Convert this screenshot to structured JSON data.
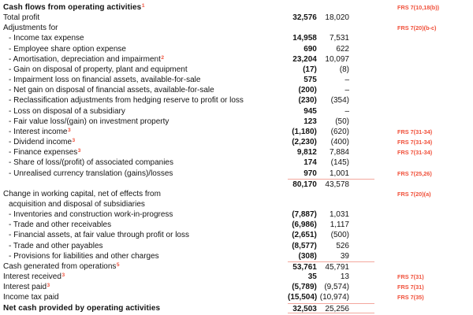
{
  "document": {
    "type": "cash-flow-statement",
    "colors": {
      "accent": "#f0503a",
      "rule": "#f3a79e",
      "text": "#141414"
    },
    "columns": {
      "col1_role": "current-year-amounts",
      "col2_role": "prior-year-amounts",
      "ref_role": "frs-reference"
    },
    "rows": [
      {
        "label": "Cash flows from operating activities",
        "sup": "1",
        "heading": true,
        "frs": "FRS 7(10,18(b))"
      },
      {
        "label": "Total profit",
        "v1": "32,576",
        "v2": "18,020"
      },
      {
        "label": "Adjustments for",
        "frs": "FRS 7(20)(b-c)"
      },
      {
        "label": "- Income tax expense",
        "indent": 1,
        "v1": "14,958",
        "v2": "7,531"
      },
      {
        "label": "- Employee share option expense",
        "indent": 1,
        "v1": "690",
        "v2": "622"
      },
      {
        "label": "- Amortisation, depreciation and impairment",
        "sup": "2",
        "indent": 1,
        "v1": "23,204",
        "v2": "10,097"
      },
      {
        "label": "- Gain on disposal of property, plant and equipment",
        "indent": 1,
        "v1": "(17)",
        "v2": "(8)"
      },
      {
        "label": "- Impairment loss on financial assets, available-for-sale",
        "indent": 1,
        "v1": "575",
        "v2": "–"
      },
      {
        "label": "- Net gain on disposal of financial assets, available-for-sale",
        "indent": 1,
        "v1": "(200)",
        "v2": "–"
      },
      {
        "label": "- Reclassification adjustments from hedging reserve to profit or loss",
        "indent": 1,
        "v1": "(230)",
        "v2": "(354)"
      },
      {
        "label": "- Loss on disposal of a subsidiary",
        "indent": 1,
        "v1": "945",
        "v2": "–"
      },
      {
        "label": "- Fair value loss/(gain) on investment property",
        "indent": 1,
        "v1": "123",
        "v2": "(50)"
      },
      {
        "label": "- Interest income",
        "sup": "3",
        "indent": 1,
        "v1": "(1,180)",
        "v2": "(620)",
        "frs": "FRS 7(31-34)"
      },
      {
        "label": "- Dividend income",
        "sup": "3",
        "indent": 1,
        "v1": "(2,230)",
        "v2": "(400)",
        "frs": "FRS 7(31-34)"
      },
      {
        "label": "- Finance expenses",
        "sup": "3",
        "indent": 1,
        "v1": "9,812",
        "v2": "7,884",
        "frs": "FRS 7(31-34)"
      },
      {
        "label": "- Share of loss/(profit) of associated companies",
        "indent": 1,
        "v1": "174",
        "v2": "(145)"
      },
      {
        "label": "- Unrealised currency translation (gains)/losses",
        "indent": 1,
        "v1": "970",
        "v2": "1,001",
        "frs": "FRS 7(25,26)"
      },
      {
        "label": "",
        "v1": "80,170",
        "v2": "43,578",
        "rule_above": true
      },
      {
        "label": "Change in working capital, net of effects from",
        "frs": "FRS 7(20)(a)"
      },
      {
        "label": "acquisition and disposal of subsidiaries",
        "indent": 1
      },
      {
        "label": "- Inventories and construction work-in-progress",
        "indent": 1,
        "v1": "(7,887)",
        "v2": "1,031"
      },
      {
        "label": "- Trade and other receivables",
        "indent": 1,
        "v1": "(6,986)",
        "v2": "1,117"
      },
      {
        "label": "- Financial assets, at fair value through profit or loss",
        "indent": 1,
        "v1": "(2,651)",
        "v2": "(500)"
      },
      {
        "label": "- Trade and other payables",
        "indent": 1,
        "v1": "(8,577)",
        "v2": "526"
      },
      {
        "label": "- Provisions for liabilities and other charges",
        "indent": 1,
        "v1": "(308)",
        "v2": "39"
      },
      {
        "label": "Cash generated from operations",
        "sup": "5",
        "v1": "53,761",
        "v2": "45,791",
        "rule_above": true
      },
      {
        "label": "Interest received",
        "sup": "3",
        "v1": "35",
        "v2": "13",
        "frs": "FRS 7(31)"
      },
      {
        "label": "Interest paid",
        "sup": "3",
        "v1": "(5,789)",
        "v2": "(9,574)",
        "frs": "FRS 7(31)"
      },
      {
        "label": "Income tax paid",
        "v1": "(15,504)",
        "v2": "(10,974)",
        "frs": "FRS 7(35)"
      },
      {
        "label": "Net cash provided by operating activities",
        "total": true,
        "v1": "32,503",
        "v2": "25,256",
        "rule_above": true,
        "rule_below": true
      }
    ]
  }
}
